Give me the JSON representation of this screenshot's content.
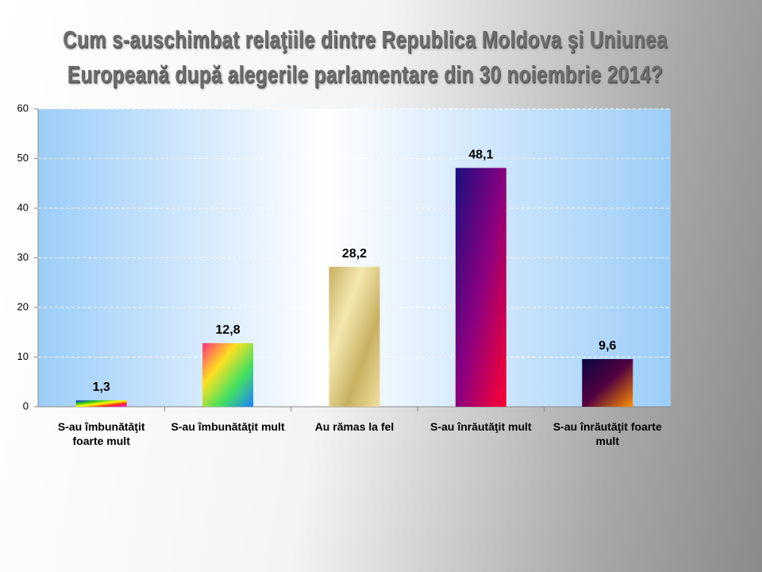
{
  "chart_data": {
    "type": "bar",
    "title": "Cum s-auschimbat relaţiile dintre Republica Moldova şi Uniunea Europeană după alegerile parlamentare din 30 noiembrie 2014?",
    "categories": [
      "S-au îmbunătăţit foarte mult",
      "S-au îmbunătăţit mult",
      "Au rămas la fel",
      "S-au înrăutăţit mult",
      "S-au înrăutăţit foarte mult"
    ],
    "values": [
      1.3,
      12.8,
      28.2,
      48.1,
      9.6
    ],
    "value_labels": [
      "1,3",
      "12,8",
      "28,2",
      "48,1",
      "9,6"
    ],
    "colors": [
      [
        "#2020ff",
        "#20c020",
        "#ffff00",
        "#ff2020",
        "#ff20ff"
      ],
      [
        "#ff3080",
        "#ffe020",
        "#40e060",
        "#2080ff"
      ],
      [
        "#c8b060",
        "#f4e8b0",
        "#c8b060",
        "#f0e0a0"
      ],
      [
        "#1a1080",
        "#8a0080",
        "#ff0030"
      ],
      [
        "#0a0a40",
        "#500040",
        "#ff9000"
      ]
    ],
    "ylim": [
      0,
      60
    ],
    "yticks": [
      0,
      10,
      20,
      30,
      40,
      50,
      60
    ],
    "grid": true
  }
}
